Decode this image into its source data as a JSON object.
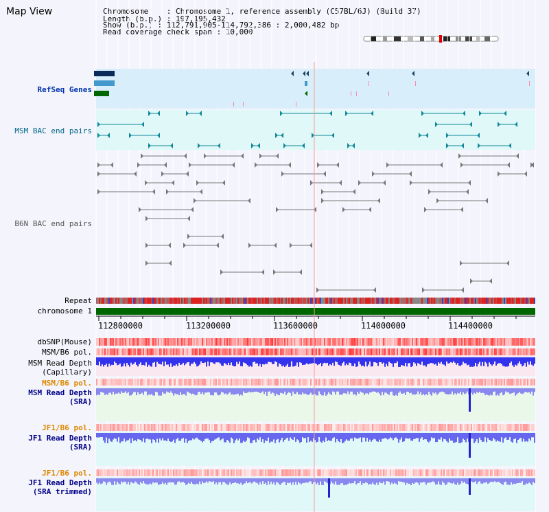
{
  "title": "Map View",
  "header": {
    "line1": "Chromosome    : Chromosome 1, reference assembly (C57BL/6J) (Build 37)",
    "line2": "Length (b.p.) : 197,195,432",
    "line3": "Show (b.p.) : 112,791,905-114,792,386 : 2,000,482 bp",
    "line4": "Read coverage check span : 10,000"
  },
  "tracks": {
    "refseq": "RefSeq Genes",
    "msm_bac": "MSM BAC end pairs",
    "b6n_bac": "B6N BAC end pairs",
    "repeat": "Repeat",
    "chromosome": "chromosome 1",
    "dbsnp": "dbSNP(Mouse)",
    "msm_b6_pol": "MSM/B6 pol.",
    "msm_read_depth_cap_1": "MSM Read Depth",
    "msm_read_depth_cap_2": "(Capillary)",
    "msm_b6_pol2": "MSM/B6 pol.",
    "msm_read_depth_sra_1": "MSM Read Depth",
    "msm_read_depth_sra_2": "(SRA)",
    "jf1_b6_pol": "JF1/B6 pol.",
    "jf1_read_depth_1": "JF1 Read Depth",
    "jf1_read_depth_2": "(SRA)",
    "jf1_b6_pol2": "JF1/B6 pol.",
    "jf1_trim_1": "JF1 Read Depth",
    "jf1_trim_2": "(SRA trimmed)"
  },
  "axis": {
    "ticks": [
      "112800000",
      "113200000",
      "113600000",
      "114000000",
      "114400000"
    ]
  },
  "colors": {
    "refseq_bg": "#d8eefa",
    "msm_bg": "#e0f8f8",
    "chromosome_bar": "#006600",
    "depth_blue": "#2a2ae8",
    "depth_light": "#8888ee"
  }
}
